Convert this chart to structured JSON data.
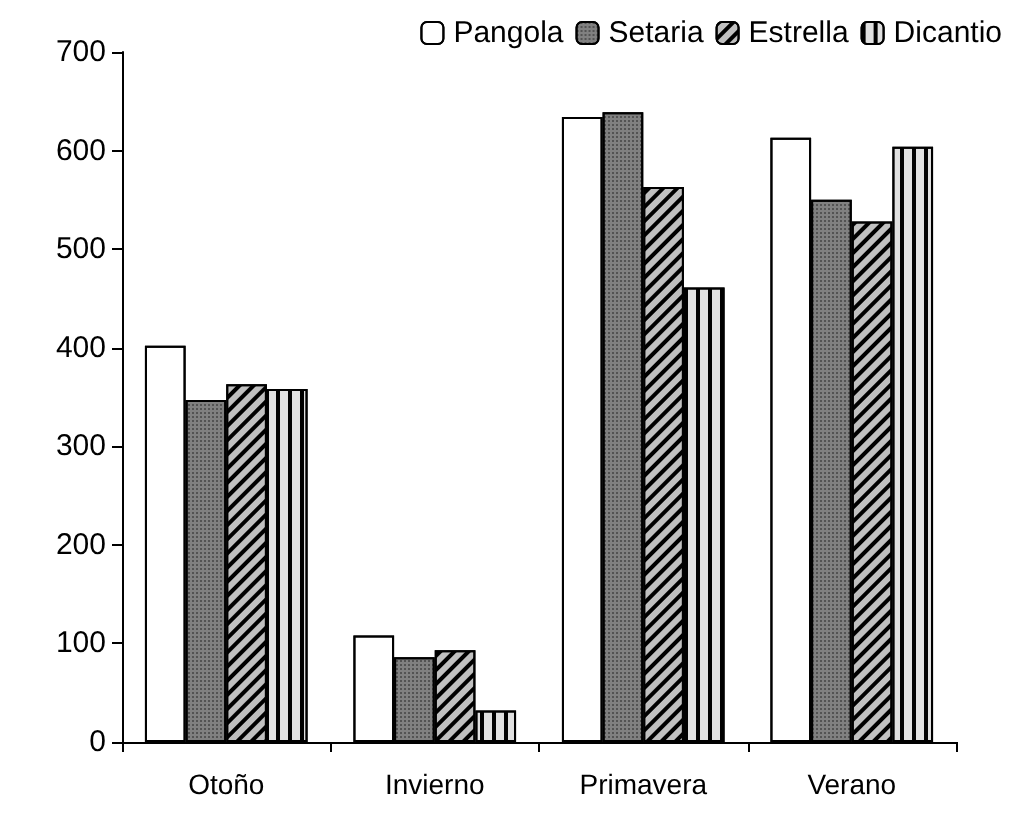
{
  "chart_data": {
    "type": "bar",
    "categories": [
      "Otoño",
      "Invierno",
      "Primavera",
      "Verano"
    ],
    "series": [
      {
        "name": "Pangola",
        "color": "#ffffff",
        "values": [
          402,
          108,
          634,
          613
        ]
      },
      {
        "name": "Setaria",
        "color": "#808080",
        "values": [
          347,
          86,
          639,
          550
        ]
      },
      {
        "name": "Estrella",
        "color": "#c0c0c0",
        "values": [
          363,
          93,
          563,
          528
        ]
      },
      {
        "name": "Dicantio",
        "color": "#e0e0e0",
        "values": [
          358,
          32,
          461,
          604
        ]
      }
    ],
    "ylim": [
      0,
      700
    ],
    "yticks": [
      0,
      100,
      200,
      300,
      400,
      500,
      600,
      700
    ],
    "grid": false,
    "legend": "top right"
  }
}
